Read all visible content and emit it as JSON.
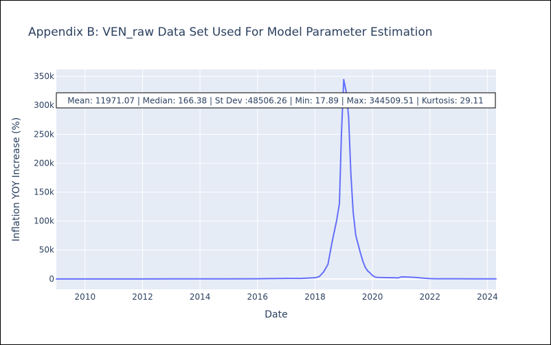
{
  "chart_data": {
    "type": "line",
    "title": "Appendix B: VEN_raw Data Set Used For Model Parameter Estimation",
    "xlabel": "Date",
    "ylabel": "Inflation YOY Increase (%)",
    "xlim": [
      2009.0,
      2024.3
    ],
    "ylim": [
      -18000,
      362000
    ],
    "x_ticks": [
      {
        "value": 2010,
        "label": "2010"
      },
      {
        "value": 2012,
        "label": "2012"
      },
      {
        "value": 2014,
        "label": "2014"
      },
      {
        "value": 2016,
        "label": "2016"
      },
      {
        "value": 2018,
        "label": "2018"
      },
      {
        "value": 2020,
        "label": "2020"
      },
      {
        "value": 2022,
        "label": "2022"
      },
      {
        "value": 2024,
        "label": "2024"
      }
    ],
    "y_ticks": [
      {
        "value": 0,
        "label": "0"
      },
      {
        "value": 50000,
        "label": "50k"
      },
      {
        "value": 100000,
        "label": "100k"
      },
      {
        "value": 150000,
        "label": "150k"
      },
      {
        "value": 200000,
        "label": "200k"
      },
      {
        "value": 250000,
        "label": "250k"
      },
      {
        "value": 300000,
        "label": "300k"
      },
      {
        "value": 350000,
        "label": "350k"
      }
    ],
    "annotation": "Mean: 11971.07 | Median: 166.38 | St Dev :48506.26 | Min: 17.89 | Max: 344509.51 | Kurtosis: 29.11",
    "series": [
      {
        "name": "VEN_raw",
        "color": "#636efa",
        "x": [
          2009.0,
          2010.0,
          2011.0,
          2012.0,
          2013.0,
          2014.0,
          2015.0,
          2016.0,
          2017.0,
          2017.5,
          2018.0,
          2018.15,
          2018.3,
          2018.45,
          2018.6,
          2018.75,
          2018.85,
          2018.92,
          2019.0,
          2019.08,
          2019.17,
          2019.25,
          2019.33,
          2019.42,
          2019.5,
          2019.58,
          2019.67,
          2019.75,
          2019.83,
          2019.92,
          2020.0,
          2020.1,
          2020.25,
          2020.5,
          2020.75,
          2020.9,
          2021.0,
          2021.25,
          2021.5,
          2021.75,
          2022.0,
          2022.2,
          2022.5,
          2023.0,
          2023.5,
          2024.0,
          2024.3
        ],
        "y": [
          18,
          27,
          29,
          21,
          40,
          69,
          180,
          300,
          800,
          900,
          2000,
          4000,
          12000,
          25000,
          65000,
          100000,
          130000,
          250000,
          344509,
          325000,
          280000,
          180000,
          115000,
          75000,
          60000,
          45000,
          30000,
          20000,
          14000,
          10000,
          6000,
          3000,
          2500,
          2200,
          2000,
          1800,
          3500,
          3200,
          2500,
          1500,
          600,
          300,
          250,
          200,
          180,
          120,
          100
        ]
      }
    ]
  }
}
